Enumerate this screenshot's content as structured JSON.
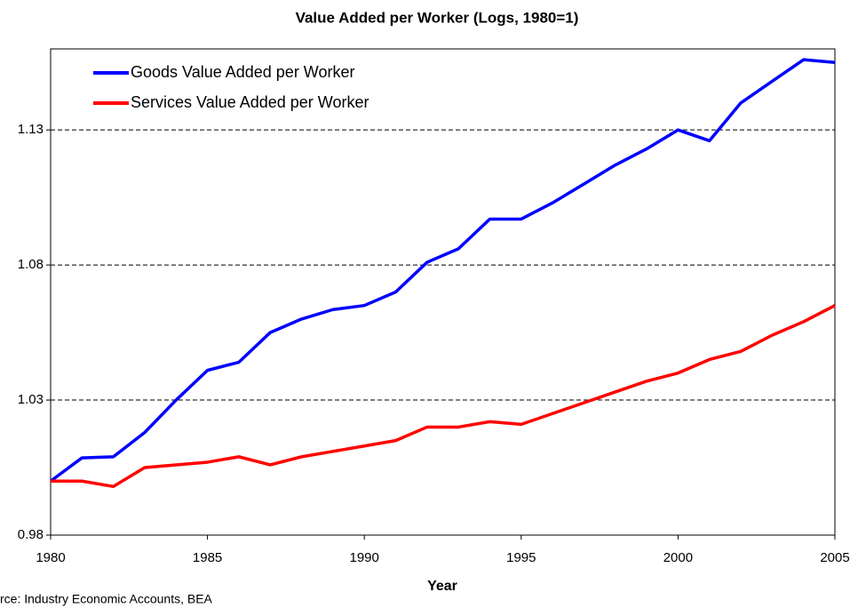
{
  "chart_data": {
    "type": "line",
    "title": "Value Added per Worker (Logs, 1980=1)",
    "x_label": "Year",
    "source": "rce: Industry Economic Accounts, BEA",
    "x": [
      1980,
      1981,
      1982,
      1983,
      1984,
      1985,
      1986,
      1987,
      1988,
      1989,
      1990,
      1991,
      1992,
      1993,
      1994,
      1995,
      1996,
      1997,
      1998,
      1999,
      2000,
      2001,
      2002,
      2003,
      2004,
      2005
    ],
    "series": [
      {
        "name": "Goods Value Added per Worker",
        "color": "#0000ff",
        "values": [
          1.0,
          1.0086,
          1.009,
          1.018,
          1.03,
          1.041,
          1.044,
          1.055,
          1.06,
          1.0635,
          1.065,
          1.07,
          1.081,
          1.086,
          1.097,
          1.097,
          1.103,
          1.11,
          1.117,
          1.123,
          1.13,
          1.126,
          1.14,
          1.148,
          1.156,
          1.155
        ]
      },
      {
        "name": "Services Value Added per Worker",
        "color": "#ff0000",
        "values": [
          1.0,
          1.0,
          0.998,
          1.005,
          1.006,
          1.007,
          1.009,
          1.006,
          1.009,
          1.011,
          1.013,
          1.015,
          1.02,
          1.02,
          1.022,
          1.021,
          1.025,
          1.029,
          1.033,
          1.037,
          1.04,
          1.045,
          1.048,
          1.054,
          1.059,
          1.065
        ]
      }
    ],
    "xlim": [
      1980,
      2005
    ],
    "xticks": [
      1980,
      1985,
      1990,
      1995,
      2000,
      2005
    ],
    "ylim": [
      0.98,
      1.16
    ],
    "yticks": [
      0.98,
      1.03,
      1.08,
      1.13
    ],
    "grid": true,
    "legend": "upper-left"
  }
}
